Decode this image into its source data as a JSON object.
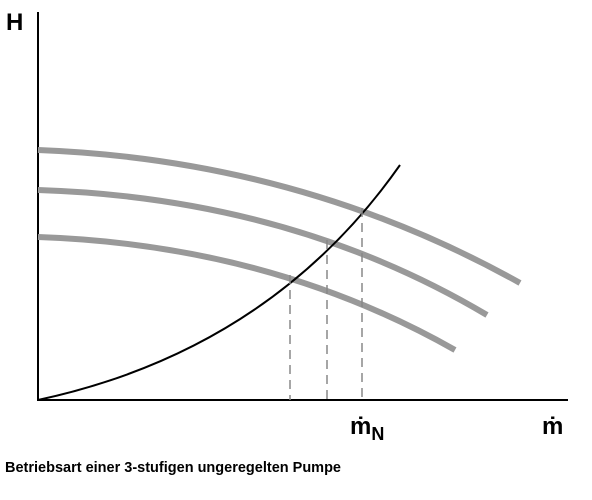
{
  "diagram": {
    "y_axis_label": "H",
    "x_axis_label": "ṁ",
    "nominal_label": {
      "symbol": "ṁ",
      "subscript": "N"
    },
    "caption": "Betriebsart einer 3-stufigen ungeregelten Pumpe"
  }
}
